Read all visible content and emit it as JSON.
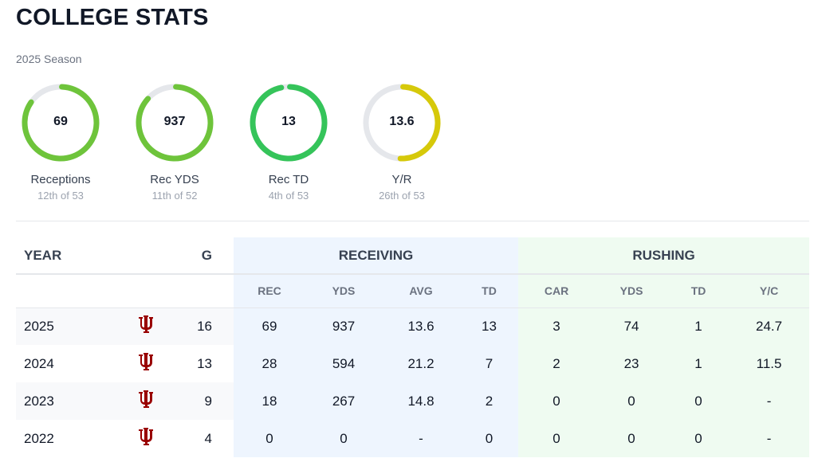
{
  "title": "COLLEGE STATS",
  "season": "2025 Season",
  "rings": [
    {
      "value": "69",
      "label": "Receptions",
      "rank": "12th of 53",
      "fill": 0.84,
      "color": "#6ec43b"
    },
    {
      "value": "937",
      "label": "Rec YDS",
      "rank": "11th of 52",
      "fill": 0.86,
      "color": "#6ec43b"
    },
    {
      "value": "13",
      "label": "Rec TD",
      "rank": "4th of 53",
      "fill": 0.96,
      "color": "#35c45a"
    },
    {
      "value": "13.6",
      "label": "Y/R",
      "rank": "26th of 53",
      "fill": 0.5,
      "color": "#d6c90a"
    }
  ],
  "table": {
    "year_header": "YEAR",
    "g_header": "G",
    "receiving_header": "RECEIVING",
    "rushing_header": "RUSHING",
    "sub": [
      "REC",
      "YDS",
      "AVG",
      "TD",
      "CAR",
      "YDS",
      "TD",
      "Y/C"
    ],
    "team_logo_icon": "indiana-trident-logo",
    "logo_color": "#990000",
    "rows": [
      [
        "2025",
        "16",
        "69",
        "937",
        "13.6",
        "13",
        "3",
        "74",
        "1",
        "24.7"
      ],
      [
        "2024",
        "13",
        "28",
        "594",
        "21.2",
        "7",
        "2",
        "23",
        "1",
        "11.5"
      ],
      [
        "2023",
        "9",
        "18",
        "267",
        "14.8",
        "2",
        "0",
        "0",
        "0",
        "-"
      ],
      [
        "2022",
        "4",
        "0",
        "0",
        "-",
        "0",
        "0",
        "0",
        "0",
        "-"
      ]
    ]
  }
}
